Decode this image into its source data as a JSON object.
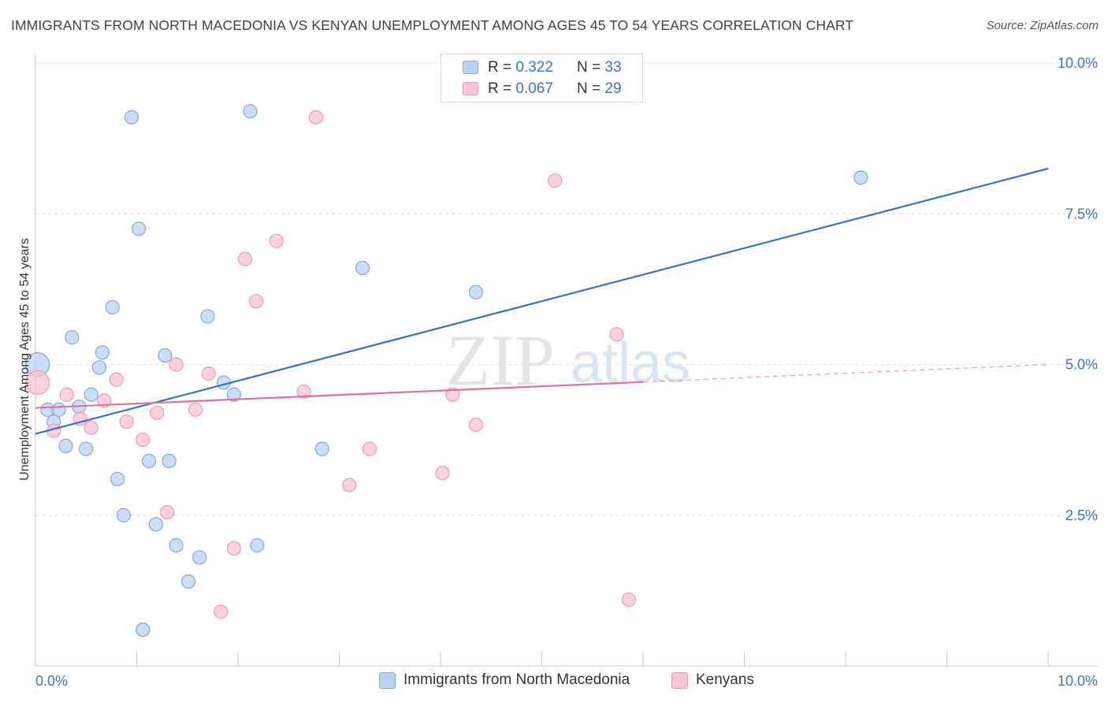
{
  "title": "IMMIGRANTS FROM NORTH MACEDONIA VS KENYAN UNEMPLOYMENT AMONG AGES 45 TO 54 YEARS CORRELATION CHART",
  "source": "Source: ZipAtlas.com",
  "watermark": {
    "zip": "ZIP",
    "atlas": "atlas"
  },
  "legend_top": [
    {
      "r_label": "R = ",
      "r_value": "0.322",
      "n_label": "N = ",
      "n_value": "33"
    },
    {
      "r_label": "R = ",
      "r_value": "0.067",
      "n_label": "N = ",
      "n_value": "29"
    }
  ],
  "colors": {
    "blue_fill": "#b9d3f3",
    "blue_stroke": "#7ea9e0",
    "blue_line": "#2f74cf",
    "pink_fill": "#f8c3d3",
    "pink_stroke": "#ec9ab3",
    "pink_line": "#e46f97",
    "tick_label": "#3a75c4",
    "grid": "#dcdcdc"
  },
  "chart_data": {
    "type": "scatter",
    "title": "IMMIGRANTS FROM NORTH MACEDONIA VS KENYAN UNEMPLOYMENT AMONG AGES 45 TO 54 YEARS CORRELATION CHART",
    "xlabel": "",
    "ylabel": "Unemployment Among Ages 45 to 54 years",
    "xlim": [
      0,
      10
    ],
    "ylim": [
      0,
      10
    ],
    "x_tick_labels": [
      "0.0%",
      "10.0%"
    ],
    "y_ticks": [
      2.5,
      5.0,
      7.5,
      10.0
    ],
    "y_tick_labels": [
      "2.5%",
      "5.0%",
      "7.5%",
      "10.0%"
    ],
    "grid": true,
    "legend_position": "bottom",
    "series": [
      {
        "name": "Immigrants from North Macedonia",
        "color": "#7ea9e0",
        "points": [
          {
            "x": 0.02,
            "y": 5.0,
            "size": "large"
          },
          {
            "x": 0.12,
            "y": 4.25
          },
          {
            "x": 0.18,
            "y": 4.05
          },
          {
            "x": 0.23,
            "y": 4.25
          },
          {
            "x": 0.3,
            "y": 3.65
          },
          {
            "x": 0.36,
            "y": 5.45
          },
          {
            "x": 0.43,
            "y": 4.3
          },
          {
            "x": 0.5,
            "y": 3.6
          },
          {
            "x": 0.55,
            "y": 4.5
          },
          {
            "x": 0.63,
            "y": 4.95
          },
          {
            "x": 0.66,
            "y": 5.2
          },
          {
            "x": 0.76,
            "y": 5.95
          },
          {
            "x": 0.81,
            "y": 3.1
          },
          {
            "x": 0.87,
            "y": 2.5
          },
          {
            "x": 0.95,
            "y": 9.1
          },
          {
            "x": 1.02,
            "y": 7.25
          },
          {
            "x": 1.06,
            "y": 0.6
          },
          {
            "x": 1.12,
            "y": 3.4
          },
          {
            "x": 1.19,
            "y": 2.35
          },
          {
            "x": 1.28,
            "y": 5.15
          },
          {
            "x": 1.32,
            "y": 3.4
          },
          {
            "x": 1.39,
            "y": 2.0
          },
          {
            "x": 1.51,
            "y": 1.4
          },
          {
            "x": 1.62,
            "y": 1.8
          },
          {
            "x": 1.7,
            "y": 5.8
          },
          {
            "x": 1.86,
            "y": 4.7
          },
          {
            "x": 1.96,
            "y": 4.5
          },
          {
            "x": 2.12,
            "y": 9.2
          },
          {
            "x": 2.19,
            "y": 2.0
          },
          {
            "x": 2.83,
            "y": 3.6
          },
          {
            "x": 3.23,
            "y": 6.6
          },
          {
            "x": 4.35,
            "y": 6.2
          },
          {
            "x": 8.15,
            "y": 8.1
          }
        ],
        "trend": {
          "x": [
            0.0,
            10.0
          ],
          "y": [
            3.85,
            8.25
          ]
        }
      },
      {
        "name": "Kenyans",
        "color": "#ec9ab3",
        "points": [
          {
            "x": 0.02,
            "y": 4.7,
            "size": "large"
          },
          {
            "x": 0.18,
            "y": 3.9
          },
          {
            "x": 0.31,
            "y": 4.5
          },
          {
            "x": 0.44,
            "y": 4.1
          },
          {
            "x": 0.55,
            "y": 3.95
          },
          {
            "x": 0.68,
            "y": 4.4
          },
          {
            "x": 0.8,
            "y": 4.75
          },
          {
            "x": 0.9,
            "y": 4.05
          },
          {
            "x": 1.06,
            "y": 3.75
          },
          {
            "x": 1.2,
            "y": 4.2
          },
          {
            "x": 1.3,
            "y": 2.55
          },
          {
            "x": 1.39,
            "y": 5.0
          },
          {
            "x": 1.58,
            "y": 4.25
          },
          {
            "x": 1.71,
            "y": 4.85
          },
          {
            "x": 1.83,
            "y": 0.9
          },
          {
            "x": 1.96,
            "y": 1.95
          },
          {
            "x": 2.07,
            "y": 6.75
          },
          {
            "x": 2.18,
            "y": 6.05
          },
          {
            "x": 2.38,
            "y": 7.05
          },
          {
            "x": 2.65,
            "y": 4.55
          },
          {
            "x": 2.77,
            "y": 9.1
          },
          {
            "x": 3.1,
            "y": 3.0
          },
          {
            "x": 3.3,
            "y": 3.6
          },
          {
            "x": 4.02,
            "y": 3.2
          },
          {
            "x": 4.12,
            "y": 4.5
          },
          {
            "x": 4.35,
            "y": 4.0
          },
          {
            "x": 5.13,
            "y": 8.05
          },
          {
            "x": 5.74,
            "y": 5.5
          },
          {
            "x": 5.86,
            "y": 1.1
          }
        ],
        "trend": {
          "x": [
            0.0,
            6.0
          ],
          "y": [
            4.28,
            4.71
          ]
        },
        "trend_extension": {
          "x": [
            6.0,
            10.0
          ],
          "y": [
            4.71,
            5.0
          ]
        }
      }
    ]
  }
}
